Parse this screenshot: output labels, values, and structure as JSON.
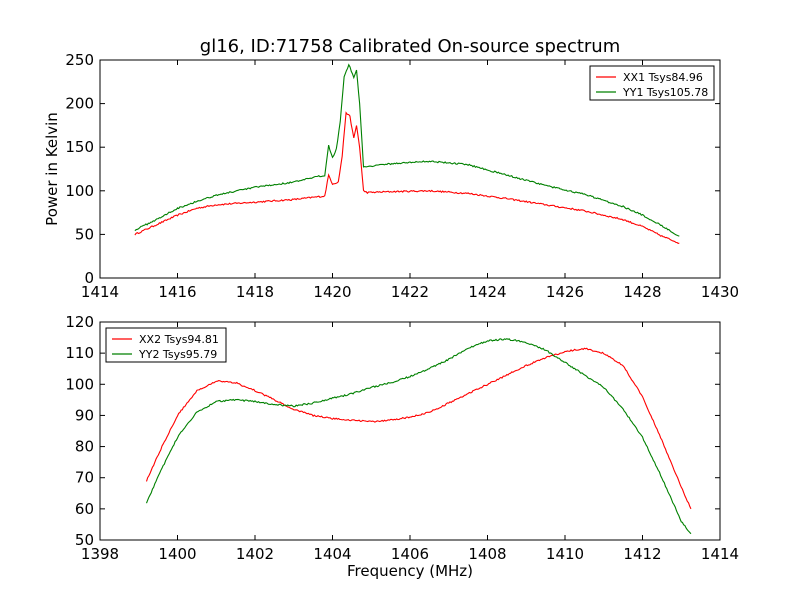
{
  "chart_data": {
    "title": "gl16, ID:71758 Calibrated On-source spectrum",
    "panels": [
      {
        "type": "line",
        "xlim": [
          1414,
          1430
        ],
        "ylim": [
          0,
          250
        ],
        "xticks": [
          1414,
          1416,
          1418,
          1420,
          1422,
          1424,
          1426,
          1428,
          1430
        ],
        "yticks": [
          0,
          50,
          100,
          150,
          200,
          250
        ],
        "xlabel": "",
        "ylabel": "Power in Kelvin",
        "legend": "top-right",
        "series": [
          {
            "name": "XX1 Tsys84.96",
            "color": "#ff0000",
            "x": [
              1414.9,
              1415.5,
              1416.0,
              1416.5,
              1417.0,
              1418.0,
              1419.0,
              1419.8,
              1419.9,
              1420.0,
              1420.15,
              1420.25,
              1420.35,
              1420.45,
              1420.55,
              1420.62,
              1420.7,
              1420.8,
              1420.9,
              1421.5,
              1422.5,
              1423.5,
              1424.5,
              1425.5,
              1426.5,
              1427.5,
              1428.0,
              1428.5,
              1428.95
            ],
            "y": [
              50,
              62,
              72,
              80,
              84,
              87,
              90,
              94,
              118,
              108,
              110,
              140,
              190,
              185,
              160,
              175,
              150,
              100,
              98,
              99,
              100,
              97,
              91,
              84,
              77,
              67,
              59,
              48,
              40
            ]
          },
          {
            "name": "YY1 Tsys105.78",
            "color": "#008000",
            "x": [
              1414.9,
              1415.5,
              1416.0,
              1416.5,
              1417.0,
              1418.0,
              1419.0,
              1419.8,
              1419.9,
              1420.0,
              1420.1,
              1420.2,
              1420.3,
              1420.42,
              1420.55,
              1420.62,
              1420.7,
              1420.8,
              1420.9,
              1421.5,
              1422.5,
              1423.5,
              1424.5,
              1425.5,
              1426.5,
              1427.5,
              1428.0,
              1428.5,
              1428.95
            ],
            "y": [
              55,
              68,
              80,
              88,
              95,
              104,
              110,
              118,
              152,
              138,
              148,
              180,
              230,
              245,
              230,
              238,
              200,
              128,
              128,
              131,
              134,
              130,
              118,
              106,
              96,
              82,
              72,
              60,
              48
            ]
          }
        ]
      },
      {
        "type": "line",
        "xlim": [
          1398,
          1414
        ],
        "ylim": [
          50,
          120
        ],
        "xticks": [
          1398,
          1400,
          1402,
          1404,
          1406,
          1408,
          1410,
          1412,
          1414
        ],
        "yticks": [
          50,
          60,
          70,
          80,
          90,
          100,
          110,
          120
        ],
        "xlabel": "Frequency (MHz)",
        "ylabel": "",
        "legend": "top-left",
        "series": [
          {
            "name": "XX2 Tsys94.81",
            "color": "#ff0000",
            "x": [
              1399.2,
              1399.6,
              1400.0,
              1400.5,
              1401.0,
              1401.5,
              1402.0,
              1402.5,
              1403.0,
              1403.5,
              1404.0,
              1404.5,
              1405.0,
              1405.5,
              1406.0,
              1406.5,
              1407.0,
              1407.5,
              1408.0,
              1408.5,
              1409.0,
              1409.5,
              1410.0,
              1410.5,
              1411.0,
              1411.5,
              1412.0,
              1412.5,
              1413.0,
              1413.25
            ],
            "y": [
              69,
              80,
              90,
              98,
              101,
              100.5,
              98,
              95,
              92,
              90,
              89,
              88.5,
              88,
              88.5,
              89.5,
              91,
              94,
              97,
              100,
              103,
              106,
              108.5,
              110.5,
              111.5,
              110,
              106,
              96,
              82,
              67,
              60
            ]
          },
          {
            "name": "YY2 Tsys95.79",
            "color": "#008000",
            "x": [
              1399.2,
              1399.6,
              1400.0,
              1400.5,
              1401.0,
              1401.5,
              1402.0,
              1402.5,
              1403.0,
              1403.5,
              1404.0,
              1404.5,
              1405.0,
              1405.5,
              1406.0,
              1406.5,
              1407.0,
              1407.5,
              1408.0,
              1408.5,
              1409.0,
              1409.5,
              1410.0,
              1410.5,
              1411.0,
              1411.5,
              1412.0,
              1412.5,
              1413.0,
              1413.25
            ],
            "y": [
              62,
              73,
              83,
              91,
              94.5,
              95,
              94.5,
              93.5,
              93,
              94,
              95.5,
              97,
              99,
              100.5,
              102.5,
              105,
              108,
              111.5,
              114,
              114.5,
              113.5,
              111,
              107,
              103,
              99,
              92,
              83,
              70,
              56,
              52
            ]
          }
        ]
      }
    ]
  }
}
